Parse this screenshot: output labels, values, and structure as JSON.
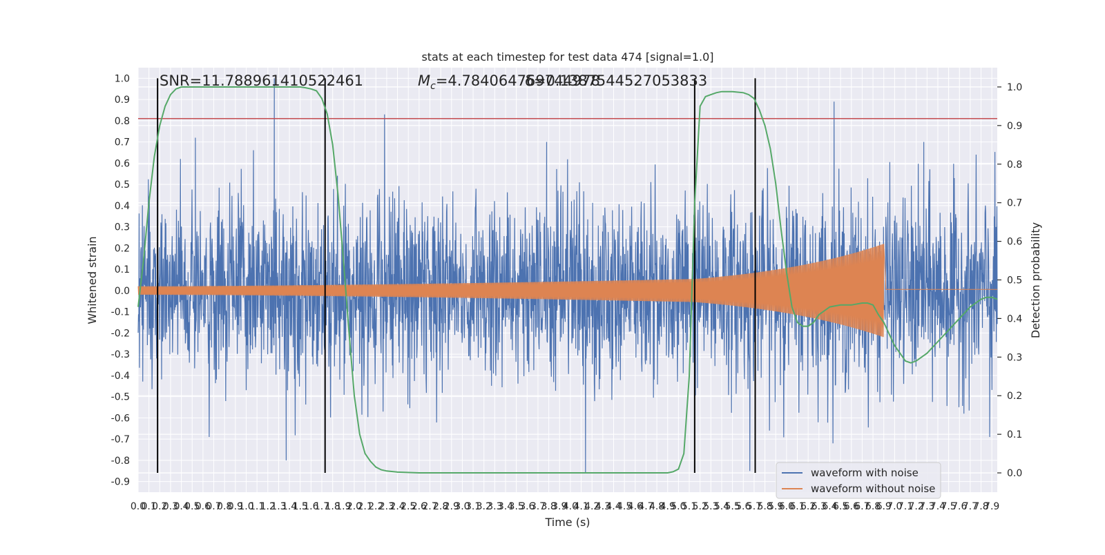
{
  "chart_data": {
    "type": "line",
    "title": "stats at each timestep for test data 474 [signal=1.0]",
    "xlabel": "Time (s)",
    "ylabel_left": "Whitened strain",
    "ylabel_right": "Detection probability",
    "xlim": [
      0.0,
      7.95
    ],
    "ylim_left": [
      -0.95,
      1.05
    ],
    "ylim_right": [
      -0.05,
      1.05
    ],
    "x_ticks": [
      "0.0",
      "0.1",
      "0.2",
      "0.3",
      "0.4",
      "0.5",
      "0.6",
      "0.7",
      "0.8",
      "0.9",
      "1.0",
      "1.1",
      "1.2",
      "1.3",
      "1.4",
      "1.5",
      "1.6",
      "1.7",
      "1.8",
      "1.9",
      "2.0",
      "2.1",
      "2.2",
      "2.3",
      "2.4",
      "2.5",
      "2.6",
      "2.7",
      "2.8",
      "2.9",
      "3.0",
      "3.1",
      "3.2",
      "3.3",
      "3.4",
      "3.5",
      "3.6",
      "3.7",
      "3.8",
      "3.9",
      "4.0",
      "4.1",
      "4.2",
      "4.3",
      "4.4",
      "4.5",
      "4.6",
      "4.7",
      "4.8",
      "4.9",
      "5.0",
      "5.1",
      "5.2",
      "5.3",
      "5.4",
      "5.5",
      "5.6",
      "5.7",
      "5.8",
      "5.9",
      "6.0",
      "6.1",
      "6.2",
      "6.3",
      "6.4",
      "6.5",
      "6.6",
      "6.7",
      "6.8",
      "6.9",
      "7.0",
      "7.1",
      "7.2",
      "7.3",
      "7.4",
      "7.5",
      "7.6",
      "7.7",
      "7.8",
      "7.9"
    ],
    "y_ticks_left": [
      "1.0",
      "0.9",
      "0.8",
      "0.7",
      "0.6",
      "0.5",
      "0.4",
      "0.3",
      "0.2",
      "0.1",
      "0.0",
      "-0.1",
      "-0.2",
      "-0.3",
      "-0.4",
      "-0.5",
      "-0.6",
      "-0.7",
      "-0.8",
      "-0.9"
    ],
    "y_ticks_right": [
      "1.0",
      "0.9",
      "0.8",
      "0.7",
      "0.6",
      "0.5",
      "0.4",
      "0.3",
      "0.2",
      "0.1",
      "0.0"
    ],
    "annotations": {
      "snr": "SNR=11.788961410522461",
      "mc_prefix": "M",
      "mc_sub": "c",
      "mc_value": "=4.784064769744978",
      "overlap": "δ=0.1387544527053833"
    },
    "threshold_y": 0.81,
    "vertical_lines_x": [
      0.18,
      1.73,
      5.15,
      5.71
    ],
    "legend": {
      "position": "lower-right",
      "entries": [
        "waveform with noise",
        "waveform without noise"
      ]
    },
    "colors": {
      "noise": "#4c72b0",
      "signal": "#dd8452",
      "probability": "#55a868",
      "threshold": "#c44e52",
      "vline": "#000000",
      "background": "#eaeaf2",
      "grid": "#ffffff"
    },
    "series_probability": {
      "name": "Detection probability",
      "x": [
        0.0,
        0.05,
        0.1,
        0.15,
        0.2,
        0.25,
        0.3,
        0.35,
        0.4,
        0.5,
        0.6,
        0.8,
        1.0,
        1.2,
        1.4,
        1.5,
        1.55,
        1.6,
        1.65,
        1.7,
        1.75,
        1.8,
        1.85,
        1.9,
        1.95,
        2.0,
        2.05,
        2.1,
        2.15,
        2.2,
        2.25,
        2.3,
        2.4,
        2.6,
        3.0,
        3.5,
        4.0,
        4.5,
        4.8,
        4.9,
        4.95,
        5.0,
        5.05,
        5.1,
        5.15,
        5.2,
        5.25,
        5.3,
        5.35,
        5.4,
        5.5,
        5.6,
        5.65,
        5.7,
        5.75,
        5.8,
        5.85,
        5.9,
        5.95,
        6.0,
        6.05,
        6.1,
        6.15,
        6.2,
        6.25,
        6.3,
        6.4,
        6.5,
        6.6,
        6.7,
        6.75,
        6.8,
        6.85,
        6.9,
        6.95,
        7.0,
        7.05,
        7.1,
        7.15,
        7.2,
        7.3,
        7.4,
        7.5,
        7.6,
        7.7,
        7.8,
        7.85,
        7.9,
        7.95
      ],
      "y": [
        0.43,
        0.55,
        0.7,
        0.82,
        0.9,
        0.95,
        0.98,
        0.995,
        1.0,
        1.0,
        1.0,
        1.0,
        1.0,
        1.0,
        1.0,
        1.0,
        0.998,
        0.995,
        0.99,
        0.97,
        0.93,
        0.85,
        0.72,
        0.55,
        0.37,
        0.2,
        0.1,
        0.05,
        0.03,
        0.015,
        0.008,
        0.005,
        0.002,
        0.0,
        0.0,
        0.0,
        0.0,
        0.0,
        0.0,
        0.0,
        0.003,
        0.01,
        0.05,
        0.25,
        0.7,
        0.95,
        0.975,
        0.98,
        0.985,
        0.988,
        0.988,
        0.985,
        0.98,
        0.97,
        0.94,
        0.9,
        0.84,
        0.75,
        0.63,
        0.52,
        0.43,
        0.39,
        0.38,
        0.38,
        0.39,
        0.41,
        0.43,
        0.435,
        0.435,
        0.44,
        0.44,
        0.435,
        0.41,
        0.39,
        0.36,
        0.33,
        0.31,
        0.29,
        0.285,
        0.29,
        0.31,
        0.34,
        0.37,
        0.4,
        0.43,
        0.45,
        0.455,
        0.455,
        0.45
      ]
    },
    "series_noise": {
      "name": "waveform with noise",
      "amplitude_std": 0.22,
      "duration": 7.95,
      "peaks": [
        [
          1.26,
          1.0
        ],
        [
          2.28,
          0.83
        ],
        [
          6.44,
          0.89
        ],
        [
          0.53,
          0.72
        ],
        [
          3.78,
          0.7
        ],
        [
          7.27,
          0.7
        ],
        [
          4.14,
          -0.86
        ],
        [
          5.66,
          -0.85
        ],
        [
          1.37,
          -0.8
        ],
        [
          7.88,
          -0.69
        ]
      ]
    },
    "series_signal": {
      "name": "waveform without noise",
      "start_amplitude": 0.02,
      "end_amplitude": 0.22,
      "merger_time": 6.9,
      "ringdown_level": 0.005
    }
  }
}
